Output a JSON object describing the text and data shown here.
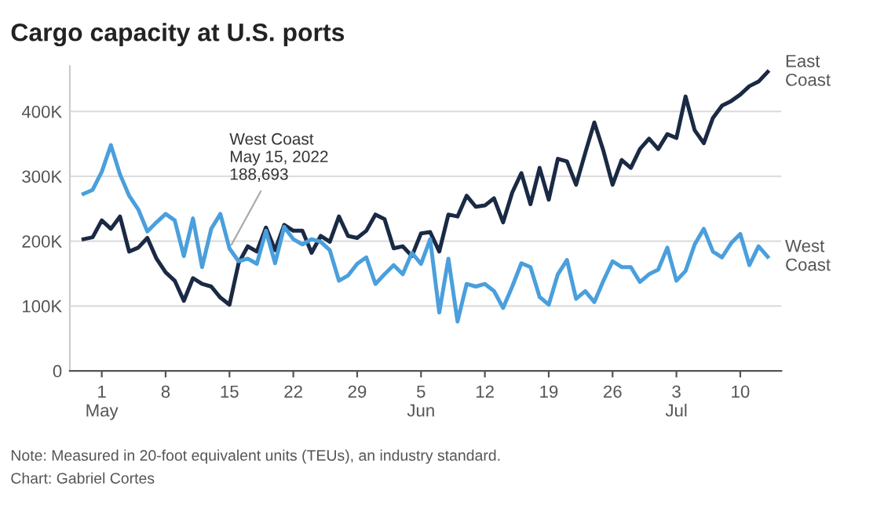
{
  "chart_data": {
    "type": "line",
    "title": "Cargo capacity at U.S. ports",
    "x": [
      "2022-04-29",
      "2022-04-30",
      "2022-05-01",
      "2022-05-02",
      "2022-05-03",
      "2022-05-04",
      "2022-05-05",
      "2022-05-06",
      "2022-05-07",
      "2022-05-08",
      "2022-05-09",
      "2022-05-10",
      "2022-05-11",
      "2022-05-12",
      "2022-05-13",
      "2022-05-14",
      "2022-05-15",
      "2022-05-16",
      "2022-05-17",
      "2022-05-18",
      "2022-05-19",
      "2022-05-20",
      "2022-05-21",
      "2022-05-22",
      "2022-05-23",
      "2022-05-24",
      "2022-05-25",
      "2022-05-26",
      "2022-05-27",
      "2022-05-28",
      "2022-05-29",
      "2022-05-30",
      "2022-05-31",
      "2022-06-01",
      "2022-06-02",
      "2022-06-03",
      "2022-06-04",
      "2022-06-05",
      "2022-06-06",
      "2022-06-07",
      "2022-06-08",
      "2022-06-09",
      "2022-06-10",
      "2022-06-11",
      "2022-06-12",
      "2022-06-13",
      "2022-06-14",
      "2022-06-15",
      "2022-06-16",
      "2022-06-17",
      "2022-06-18",
      "2022-06-19",
      "2022-06-20",
      "2022-06-21",
      "2022-06-22",
      "2022-06-23",
      "2022-06-24",
      "2022-06-25",
      "2022-06-26",
      "2022-06-27",
      "2022-06-28",
      "2022-06-29",
      "2022-06-30",
      "2022-07-01",
      "2022-07-02",
      "2022-07-03",
      "2022-07-04",
      "2022-07-05",
      "2022-07-06",
      "2022-07-07",
      "2022-07-08",
      "2022-07-09",
      "2022-07-10",
      "2022-07-11",
      "2022-07-12",
      "2022-07-13"
    ],
    "series": [
      {
        "name": "East\nCoast",
        "color": "#1a2a44",
        "values": [
          203000,
          206000,
          232000,
          219000,
          238000,
          184000,
          190000,
          205000,
          173000,
          152000,
          139000,
          108000,
          143000,
          134000,
          130000,
          113000,
          102000,
          166000,
          192000,
          184000,
          221000,
          186000,
          225000,
          216000,
          216000,
          182000,
          208000,
          199000,
          238000,
          208000,
          205000,
          216000,
          241000,
          234000,
          189000,
          192000,
          177000,
          212000,
          214000,
          184000,
          241000,
          238000,
          270000,
          253000,
          255000,
          266000,
          229000,
          275000,
          305000,
          257000,
          313000,
          264000,
          327000,
          323000,
          287000,
          336000,
          383000,
          339000,
          287000,
          325000,
          313000,
          342000,
          358000,
          342000,
          365000,
          359000,
          423000,
          371000,
          351000,
          390000,
          409000,
          416000,
          426000,
          439000,
          446000,
          461000
        ]
      },
      {
        "name": "West\nCoast",
        "color": "#4a9fdc",
        "values": [
          273000,
          279000,
          307000,
          348000,
          303000,
          270000,
          249000,
          215000,
          229000,
          242000,
          232000,
          177000,
          235000,
          160000,
          219000,
          242000,
          188693,
          169000,
          173000,
          165000,
          216000,
          166000,
          222000,
          203000,
          195000,
          203000,
          199000,
          186000,
          139000,
          147000,
          165000,
          175000,
          134000,
          149000,
          163000,
          149000,
          182000,
          165000,
          203000,
          90000,
          173000,
          76000,
          134000,
          130000,
          134000,
          123000,
          97000,
          130000,
          166000,
          160000,
          114000,
          102000,
          149000,
          171000,
          111000,
          123000,
          106000,
          139000,
          169000,
          160000,
          160000,
          137000,
          149000,
          156000,
          190000,
          139000,
          154000,
          195000,
          219000,
          184000,
          175000,
          197000,
          211000,
          163000,
          192000,
          176000
        ]
      }
    ],
    "xlim": [
      "2022-04-27T12:00",
      "2022-07-14T12:00"
    ],
    "xticks": [
      {
        "value": "2022-05-01",
        "label": "1\nMay"
      },
      {
        "value": "2022-05-08",
        "label": "8"
      },
      {
        "value": "2022-05-15",
        "label": "15"
      },
      {
        "value": "2022-05-22",
        "label": "22"
      },
      {
        "value": "2022-05-29",
        "label": "29"
      },
      {
        "value": "2022-06-05",
        "label": "5\nJun"
      },
      {
        "value": "2022-06-12",
        "label": "12"
      },
      {
        "value": "2022-06-19",
        "label": "19"
      },
      {
        "value": "2022-06-26",
        "label": "26"
      },
      {
        "value": "2022-07-03",
        "label": "3\nJul"
      },
      {
        "value": "2022-07-10",
        "label": "10"
      }
    ],
    "ylim": [
      0,
      470000
    ],
    "yticks": [
      {
        "value": 0,
        "label": "0"
      },
      {
        "value": 100000,
        "label": "100K"
      },
      {
        "value": 200000,
        "label": "200K"
      },
      {
        "value": 300000,
        "label": "300K"
      },
      {
        "value": 400000,
        "label": "400K"
      }
    ],
    "grid": "y",
    "legend": false,
    "annotations": [
      {
        "text": "West Coast\nMay 15, 2022\n188,693",
        "x": "2022-05-15",
        "y": 188693
      },
      "Note: Measured in 20-foot equivalent units (TEUs), an industry standard.",
      "Chart: Gabriel Cortes"
    ]
  }
}
